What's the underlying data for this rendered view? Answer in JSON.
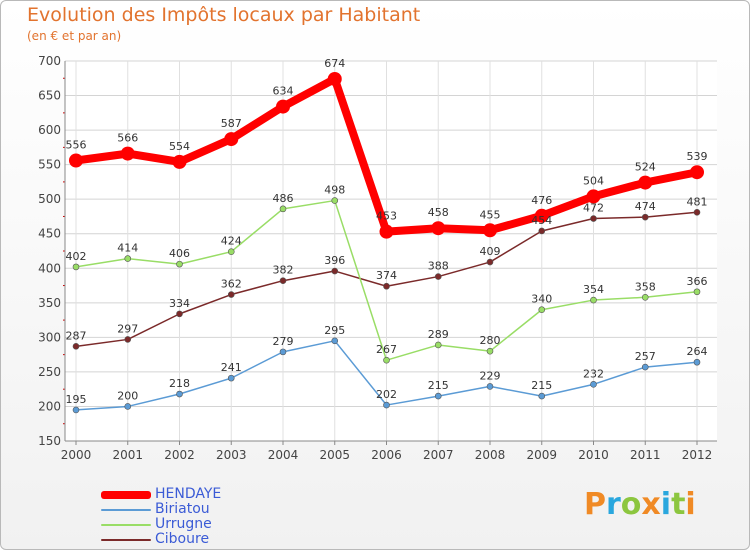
{
  "header": {
    "title": "Evolution des Impôts locaux par Habitant",
    "subtitle": "(en € et par an)"
  },
  "brand": {
    "letters": [
      "P",
      "r",
      "o",
      "x",
      "i",
      "t",
      "i"
    ],
    "colors": [
      "#f08a25",
      "#2aa7de",
      "#8cc63f",
      "#f08a25",
      "#2aa7de",
      "#8cc63f",
      "#f08a25"
    ]
  },
  "chart_data": {
    "type": "line",
    "categories": [
      "2000",
      "2001",
      "2002",
      "2003",
      "2004",
      "2005",
      "2006",
      "2007",
      "2008",
      "2009",
      "2010",
      "2011",
      "2012"
    ],
    "ylim": [
      150,
      700
    ],
    "yticks": [
      "150",
      "200",
      "250",
      "300",
      "350",
      "400",
      "450",
      "500",
      "550",
      "600",
      "650",
      "700"
    ],
    "title": "Evolution des Impôts locaux par Habitant",
    "ylabel": "(en € et par an)",
    "grid": true,
    "legend_position": "bottom-left",
    "series": [
      {
        "name": "HENDAYE",
        "color": "#ff0000",
        "values": [
          556,
          566,
          554,
          587,
          634,
          674,
          453,
          458,
          455,
          476,
          504,
          524,
          539
        ]
      },
      {
        "name": "Biriatou",
        "color": "#5b9bd5",
        "values": [
          195,
          200,
          218,
          241,
          279,
          295,
          202,
          215,
          229,
          215,
          232,
          257,
          264
        ]
      },
      {
        "name": "Urrugne",
        "color": "#99dd66",
        "values": [
          402,
          414,
          406,
          424,
          486,
          498,
          267,
          289,
          280,
          340,
          354,
          358,
          366
        ]
      },
      {
        "name": "Ciboure",
        "color": "#7b2a2a",
        "values": [
          287,
          297,
          334,
          362,
          382,
          396,
          374,
          388,
          409,
          454,
          472,
          474,
          481
        ]
      }
    ]
  }
}
